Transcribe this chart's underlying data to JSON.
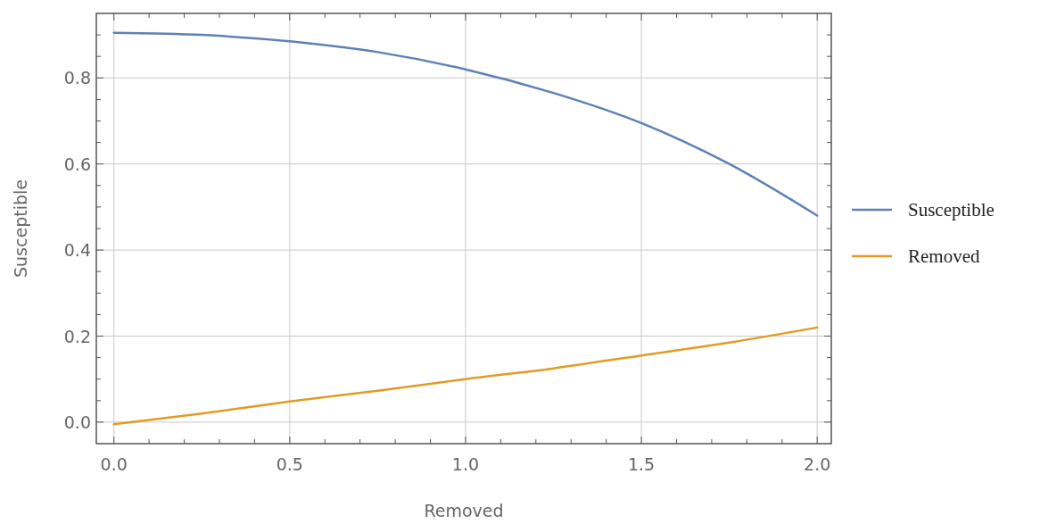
{
  "chart_data": {
    "type": "line",
    "xlabel": "Removed",
    "ylabel": "Susceptible",
    "x": [
      0,
      0.25,
      0.5,
      0.75,
      1,
      1.25,
      1.5,
      1.75,
      2
    ],
    "series": [
      {
        "name": "Susceptible",
        "color": "#5e81b5",
        "values": [
          0.905,
          0.9,
          0.885,
          0.86,
          0.82,
          0.765,
          0.695,
          0.6,
          0.48
        ]
      },
      {
        "name": "Removed",
        "color": "#e19c24",
        "values": [
          -0.005,
          0.02,
          0.048,
          0.073,
          0.1,
          0.125,
          0.155,
          0.185,
          0.22
        ]
      }
    ],
    "xlim": [
      -0.05,
      2.04
    ],
    "ylim": [
      -0.05,
      0.95
    ],
    "xticks": [
      {
        "value": 0,
        "label": "0.0"
      },
      {
        "value": 0.1,
        "label": null
      },
      {
        "value": 0.2,
        "label": null
      },
      {
        "value": 0.3,
        "label": null
      },
      {
        "value": 0.4,
        "label": null
      },
      {
        "value": 0.5,
        "label": "0.5"
      },
      {
        "value": 0.6,
        "label": null
      },
      {
        "value": 0.7,
        "label": null
      },
      {
        "value": 0.8,
        "label": null
      },
      {
        "value": 0.9,
        "label": null
      },
      {
        "value": 1,
        "label": "1.0"
      },
      {
        "value": 1.1,
        "label": null
      },
      {
        "value": 1.2,
        "label": null
      },
      {
        "value": 1.3,
        "label": null
      },
      {
        "value": 1.4,
        "label": null
      },
      {
        "value": 1.5,
        "label": "1.5"
      },
      {
        "value": 1.6,
        "label": null
      },
      {
        "value": 1.7,
        "label": null
      },
      {
        "value": 1.8,
        "label": null
      },
      {
        "value": 1.9,
        "label": null
      },
      {
        "value": 2,
        "label": "2.0"
      }
    ],
    "yticks": [
      {
        "value": 0,
        "label": "0.0"
      },
      {
        "value": 0.05,
        "label": null
      },
      {
        "value": 0.1,
        "label": null
      },
      {
        "value": 0.15,
        "label": null
      },
      0.2,
      {
        "value": 0.25,
        "label": null
      },
      {
        "value": 0.3,
        "label": null
      },
      {
        "value": 0.35,
        "label": null
      },
      0.4,
      {
        "value": 0.45,
        "label": null
      },
      {
        "value": 0.5,
        "label": null
      },
      {
        "value": 0.55,
        "label": null
      },
      0.6,
      {
        "value": 0.65,
        "label": null
      },
      {
        "value": 0.7,
        "label": null
      },
      {
        "value": 0.75,
        "label": null
      },
      0.8,
      {
        "value": 0.85,
        "label": null
      },
      {
        "value": 0.9,
        "label": null
      }
    ],
    "grid": true,
    "legend": "right",
    "line_style": "solid"
  }
}
